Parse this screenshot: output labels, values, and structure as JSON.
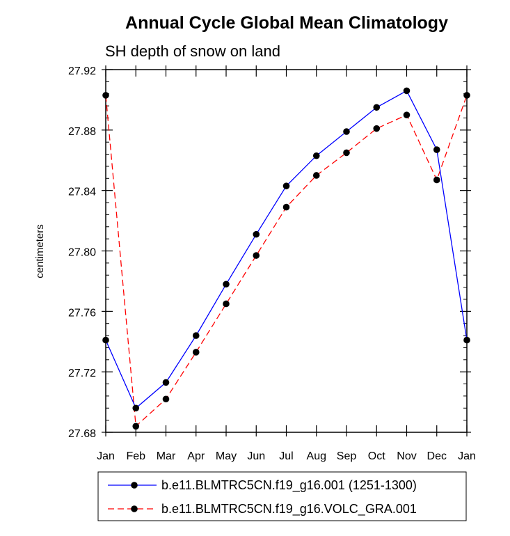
{
  "chart_data": {
    "type": "line",
    "title": "Annual Cycle Global Mean Climatology",
    "subtitle": "SH depth of snow on land",
    "ylabel": "centimeters",
    "xlabel": "",
    "categories": [
      "Jan",
      "Feb",
      "Mar",
      "Apr",
      "May",
      "Jun",
      "Jul",
      "Aug",
      "Sep",
      "Oct",
      "Nov",
      "Dec",
      "Jan"
    ],
    "ylim": [
      27.68,
      27.92
    ],
    "yticks": [
      "27.68",
      "27.72",
      "27.76",
      "27.80",
      "27.84",
      "27.88",
      "27.92"
    ],
    "series": [
      {
        "name": "b.e11.BLMTRC5CN.f19_g16.001 (1251-1300)",
        "color": "#0000ff",
        "dash": "solid",
        "values": [
          27.741,
          27.696,
          27.713,
          27.744,
          27.778,
          27.811,
          27.843,
          27.863,
          27.879,
          27.895,
          27.906,
          27.867,
          27.741
        ]
      },
      {
        "name": "b.e11.BLMTRC5CN.f19_g16.VOLC_GRA.001",
        "color": "#ff0000",
        "dash": "dashed",
        "values": [
          27.903,
          27.684,
          27.702,
          27.733,
          27.765,
          27.797,
          27.829,
          27.85,
          27.865,
          27.881,
          27.89,
          27.847,
          27.903
        ]
      }
    ],
    "legend_position": "bottom-center",
    "grid": false
  }
}
